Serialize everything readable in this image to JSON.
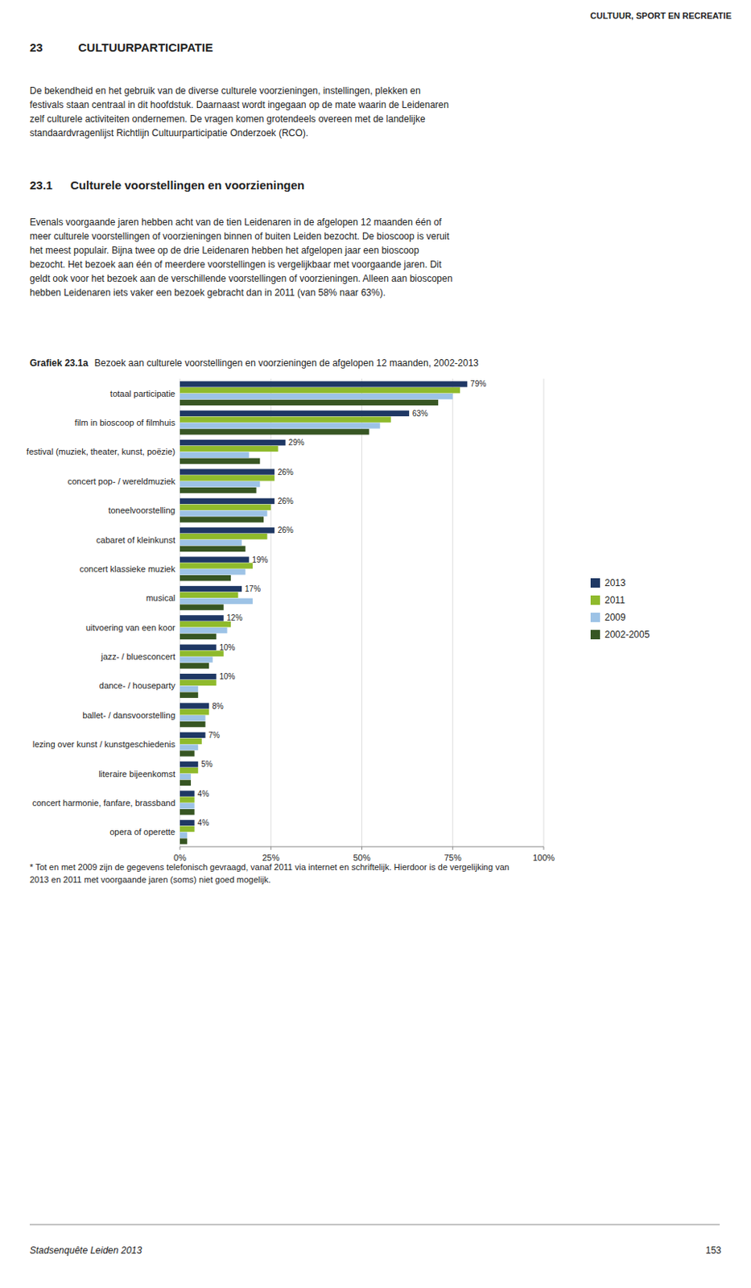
{
  "page": {
    "header_right": "CULTUUR, SPORT EN RECREATIE",
    "chapter_num": "23",
    "chapter_title": "CULTUURPARTICIPATIE",
    "section_num": "23.1",
    "section_title": "Culturele voorstellingen en voorzieningen",
    "body_text1_lines": [
      "De bekendheid en het gebruik van de diverse culturele voorzieningen, instellingen, plekken en",
      "festivals staan centraal in dit hoofdstuk. Daarnaast wordt ingegaan op de mate waarin de Leidenaren",
      "zelf culturele activiteiten ondernemen. De vragen komen grotendeels overeen met de landelijke",
      "standaardvragenlijst Richtlijn Cultuurparticipatie Onderzoek (RCO)."
    ],
    "body_text2_lines": [
      "Evenals voorgaande jaren hebben acht van de tien Leidenaren in de afgelopen 12 maanden één of",
      "meer culturele voorstellingen of voorzieningen binnen of buiten Leiden bezocht. De bioscoop is veruit",
      "het meest populair. Bijna twee op de drie Leidenaren hebben het afgelopen jaar een bioscoop",
      "bezocht. Het bezoek aan één of meerdere voorstellingen is vergelijkbaar met voorgaande jaren. Dit",
      "geldt ook voor het bezoek aan de verschillende voorstellingen of voorzieningen. Alleen aan bioscopen",
      "hebben Leidenaren iets vaker een bezoek gebracht dan in 2011 (van 58% naar 63%)."
    ],
    "footnote_lines": [
      "* Tot en met 2009 zijn de gegevens telefonisch gevraagd, vanaf 2011 via internet en schriftelijk. Hierdoor is de vergelijking van",
      "  2013 en 2011 met voorgaande jaren (soms) niet goed mogelijk."
    ],
    "footer_left": "Stadsenquête Leiden 2013",
    "footer_right": "153"
  },
  "chart_data": {
    "type": "bar",
    "orientation": "horizontal",
    "title": "Grafiek 23.1a",
    "subtitle": "Bezoek aan culturele voorstellingen en voorzieningen de afgelopen 12 maanden, 2002-2013",
    "categories": [
      "totaal participatie",
      "film in bioscoop of filmhuis",
      "festival (muziek, theater, kunst, poëzie)",
      "concert pop- / wereldmuziek",
      "toneelvoorstelling",
      "cabaret of kleinkunst",
      "concert klassieke muziek",
      "musical",
      "uitvoering van een koor",
      "jazz- / bluesconcert",
      "dance- / houseparty",
      "ballet- / dansvoorstelling",
      "lezing over kunst / kunstgeschiedenis",
      "literaire bijeenkomst",
      "concert harmonie, fanfare, brassband",
      "opera of operette"
    ],
    "series": [
      {
        "name": "2013",
        "color": "#1f3864",
        "data_labels": true,
        "values": [
          79,
          63,
          29,
          26,
          26,
          26,
          19,
          17,
          12,
          10,
          10,
          8,
          7,
          5,
          4,
          4
        ],
        "value_labels": [
          "79%",
          "63%",
          "29%",
          "26%",
          "26%",
          "26%",
          "19%",
          "17%",
          "12%",
          "10%",
          "10%",
          "8%",
          "7%",
          "5%",
          "4%",
          "4%"
        ]
      },
      {
        "name": "2011",
        "color": "#8fba2c",
        "values": [
          77,
          58,
          27,
          26,
          25,
          24,
          20,
          16,
          14,
          12,
          10,
          8,
          6,
          5,
          4,
          4
        ]
      },
      {
        "name": "2009",
        "color": "#9dc3e6",
        "values": [
          75,
          55,
          19,
          22,
          24,
          17,
          18,
          20,
          13,
          9,
          5,
          7,
          5,
          3,
          4,
          2
        ]
      },
      {
        "name": "2002-2005",
        "color": "#375623",
        "values": [
          71,
          52,
          22,
          21,
          23,
          18,
          14,
          12,
          10,
          8,
          5,
          7,
          4,
          3,
          4,
          2
        ]
      }
    ],
    "xlim": [
      0,
      100
    ],
    "xticks": [
      {
        "value": 0,
        "label": "0%"
      },
      {
        "value": 25,
        "label": "25%"
      },
      {
        "value": 50,
        "label": "50%"
      },
      {
        "value": 75,
        "label": "75%"
      },
      {
        "value": 100,
        "label": "100%"
      }
    ],
    "grid": true,
    "legend": "right"
  }
}
